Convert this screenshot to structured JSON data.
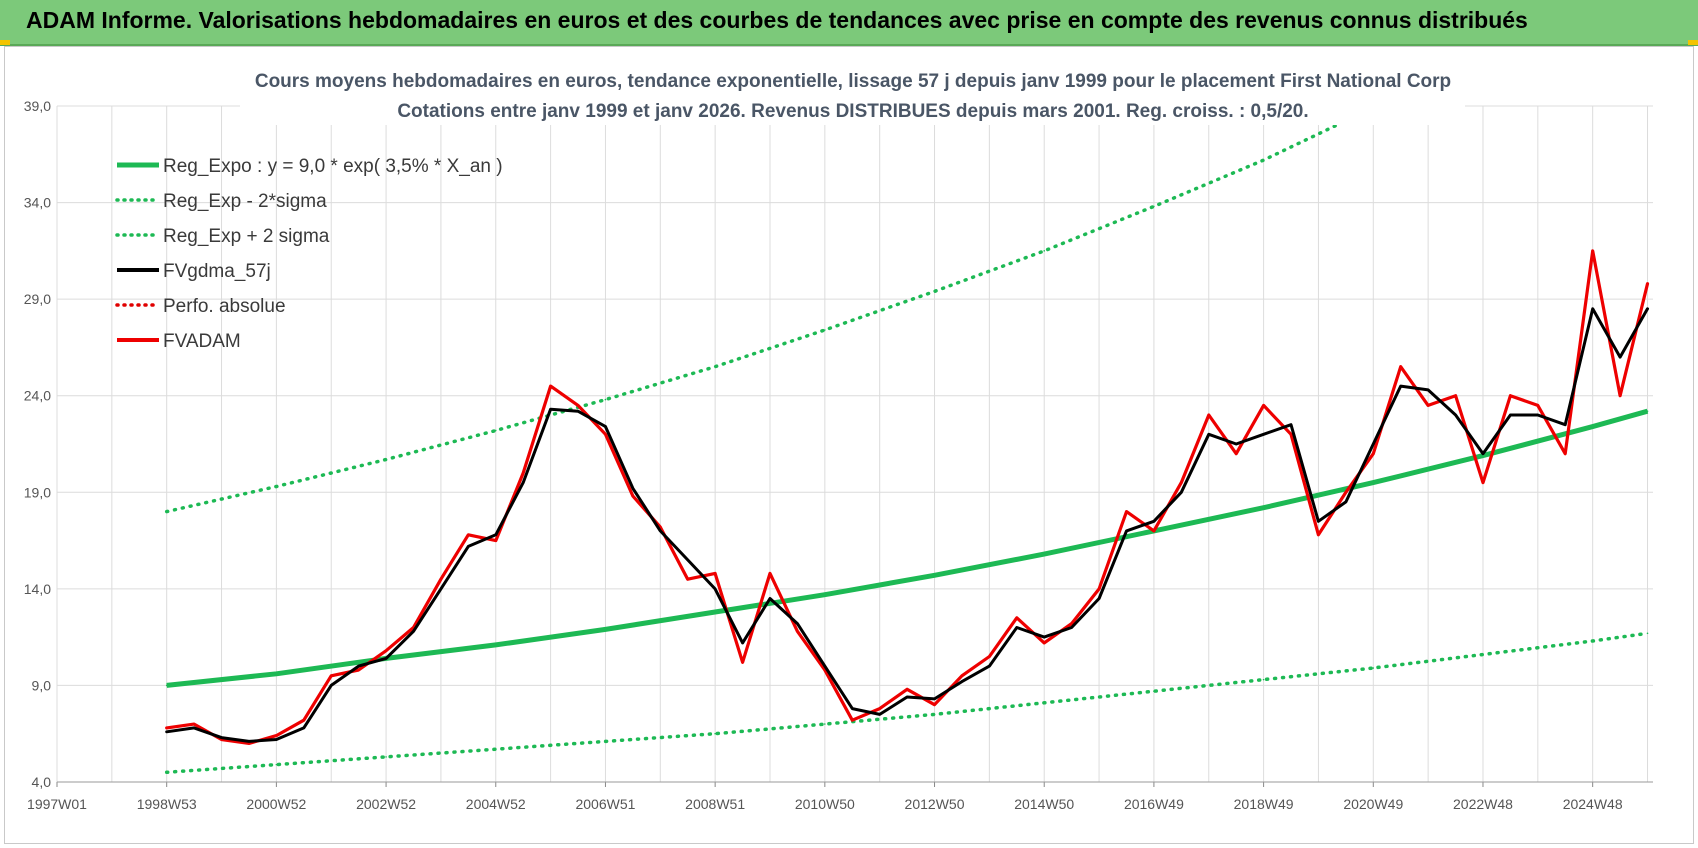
{
  "header": {
    "title": "ADAM Informe. Valorisations hebdomadaires en euros et des courbes de tendances avec prise en compte des revenus connus distribués"
  },
  "colors": {
    "banner": "#7cc97a",
    "reg_expo": "#1db954",
    "sigma": "#1db954",
    "fvgdma": "#000000",
    "perfo": "#e00000",
    "fvadam": "#ee0000"
  },
  "chart_data": {
    "type": "line",
    "title_line1": "Cours moyens hebdomadaires en euros, tendance exponentielle, lissage 57 j depuis janv 1999 pour le placement First National Corp",
    "title_line2": "Cotations entre janv 1999 et janv 2026. Revenus DISTRIBUES depuis mars 2001.  Reg. croiss. : 0,5/20.",
    "ylim": [
      4.0,
      39.0
    ],
    "y_ticks": [
      "39,0",
      "34,0",
      "29,0",
      "24,0",
      "19,0",
      "14,0",
      "9,0",
      "4,0"
    ],
    "x_ticks": [
      "1997W01",
      "1998W53",
      "2000W52",
      "2002W52",
      "2004W52",
      "2006W51",
      "2008W51",
      "2010W50",
      "2012W50",
      "2014W50",
      "2016W49",
      "2018W49",
      "2020W49",
      "2022W48",
      "2024W48"
    ],
    "xlim_years": [
      1997.0,
      2026.1
    ],
    "grid": true,
    "legend_position": "top-left",
    "legend": [
      {
        "label": "Reg_Expo : y = 9,0 * exp( 3,5% *  X_an )",
        "style": "solid-thick",
        "color": "#1db954"
      },
      {
        "label": "Reg_Exp - 2*sigma",
        "style": "dotted",
        "color": "#1db954"
      },
      {
        "label": "Reg_Exp + 2 sigma",
        "style": "dotted",
        "color": "#1db954"
      },
      {
        "label": "FVgdma_57j",
        "style": "solid",
        "color": "#000000"
      },
      {
        "label": "Perfo. absolue",
        "style": "dotted",
        "color": "#e00000"
      },
      {
        "label": "FVADAM",
        "style": "solid",
        "color": "#ee0000"
      }
    ],
    "series": [
      {
        "name": "Reg_Expo : y = 9,0 * exp( 3,5% *  X_an )",
        "x": [
          1999.0,
          2001.0,
          2003.0,
          2005.0,
          2007.0,
          2009.0,
          2011.0,
          2013.0,
          2015.0,
          2017.0,
          2019.0,
          2021.0,
          2023.0,
          2025.0,
          2026.0
        ],
        "values": [
          9.0,
          9.6,
          10.4,
          11.1,
          11.9,
          12.8,
          13.7,
          14.7,
          15.8,
          17.0,
          18.2,
          19.5,
          20.9,
          22.4,
          23.2
        ]
      },
      {
        "name": "Reg_Exp - 2*sigma",
        "x": [
          1999.0,
          2001.0,
          2003.0,
          2005.0,
          2007.0,
          2009.0,
          2011.0,
          2013.0,
          2015.0,
          2017.0,
          2019.0,
          2021.0,
          2023.0,
          2025.0,
          2026.0
        ],
        "values": [
          4.5,
          4.9,
          5.3,
          5.7,
          6.1,
          6.5,
          7.0,
          7.5,
          8.1,
          8.7,
          9.3,
          9.9,
          10.6,
          11.3,
          11.7
        ]
      },
      {
        "name": "Reg_Exp + 2 sigma",
        "x": [
          1999.0,
          2001.0,
          2003.0,
          2005.0,
          2007.0,
          2009.0,
          2011.0,
          2013.0,
          2015.0,
          2017.0,
          2019.0,
          2020.4
        ],
        "values": [
          18.0,
          19.3,
          20.7,
          22.2,
          23.8,
          25.5,
          27.4,
          29.4,
          31.5,
          33.8,
          36.2,
          38.1
        ]
      },
      {
        "name": "FVgdma_57j",
        "x": [
          1999.0,
          1999.5,
          2000.0,
          2000.5,
          2001.0,
          2001.5,
          2002.0,
          2002.5,
          2003.0,
          2003.5,
          2004.0,
          2004.5,
          2005.0,
          2005.5,
          2006.0,
          2006.5,
          2007.0,
          2007.5,
          2008.0,
          2008.5,
          2009.0,
          2009.5,
          2010.0,
          2010.5,
          2011.0,
          2011.5,
          2012.0,
          2012.5,
          2013.0,
          2013.5,
          2014.0,
          2014.5,
          2015.0,
          2015.5,
          2016.0,
          2016.5,
          2017.0,
          2017.5,
          2018.0,
          2018.5,
          2019.0,
          2019.5,
          2020.0,
          2020.5,
          2021.0,
          2021.5,
          2022.0,
          2022.5,
          2023.0,
          2023.5,
          2024.0,
          2024.5,
          2025.0,
          2025.5,
          2026.0
        ],
        "values": [
          6.6,
          6.8,
          6.3,
          6.1,
          6.2,
          6.8,
          9.0,
          10.0,
          10.4,
          11.8,
          14.0,
          16.2,
          16.8,
          19.5,
          23.3,
          23.2,
          22.4,
          19.2,
          17.0,
          15.5,
          14.0,
          11.2,
          13.5,
          12.2,
          10.0,
          7.8,
          7.5,
          8.4,
          8.3,
          9.2,
          10.0,
          12.0,
          11.5,
          12.0,
          13.5,
          17.0,
          17.5,
          19.0,
          22.0,
          21.5,
          22.0,
          22.5,
          17.5,
          18.5,
          21.5,
          24.5,
          24.3,
          23.0,
          21.0,
          23.0,
          23.0,
          22.5,
          28.5,
          26.0,
          28.5
        ]
      },
      {
        "name": "FVADAM",
        "x": [
          1999.0,
          1999.5,
          2000.0,
          2000.5,
          2001.0,
          2001.5,
          2002.0,
          2002.5,
          2003.0,
          2003.5,
          2004.0,
          2004.5,
          2005.0,
          2005.5,
          2006.0,
          2006.5,
          2007.0,
          2007.5,
          2008.0,
          2008.5,
          2009.0,
          2009.5,
          2010.0,
          2010.5,
          2011.0,
          2011.5,
          2012.0,
          2012.5,
          2013.0,
          2013.5,
          2014.0,
          2014.5,
          2015.0,
          2015.5,
          2016.0,
          2016.5,
          2017.0,
          2017.5,
          2018.0,
          2018.5,
          2019.0,
          2019.5,
          2020.0,
          2020.5,
          2021.0,
          2021.5,
          2022.0,
          2022.5,
          2023.0,
          2023.5,
          2024.0,
          2024.5,
          2025.0,
          2025.5,
          2026.0
        ],
        "values": [
          6.8,
          7.0,
          6.2,
          6.0,
          6.4,
          7.2,
          9.5,
          9.8,
          10.8,
          12.0,
          14.5,
          16.8,
          16.5,
          20.0,
          24.5,
          23.5,
          22.0,
          18.8,
          17.2,
          14.5,
          14.8,
          10.2,
          14.8,
          11.8,
          9.8,
          7.2,
          7.8,
          8.8,
          8.0,
          9.5,
          10.5,
          12.5,
          11.2,
          12.2,
          14.0,
          18.0,
          17.0,
          19.5,
          23.0,
          21.0,
          23.5,
          22.0,
          16.8,
          19.0,
          21.0,
          25.5,
          23.5,
          24.0,
          19.5,
          24.0,
          23.5,
          21.0,
          31.5,
          24.0,
          29.8
        ]
      }
    ]
  }
}
